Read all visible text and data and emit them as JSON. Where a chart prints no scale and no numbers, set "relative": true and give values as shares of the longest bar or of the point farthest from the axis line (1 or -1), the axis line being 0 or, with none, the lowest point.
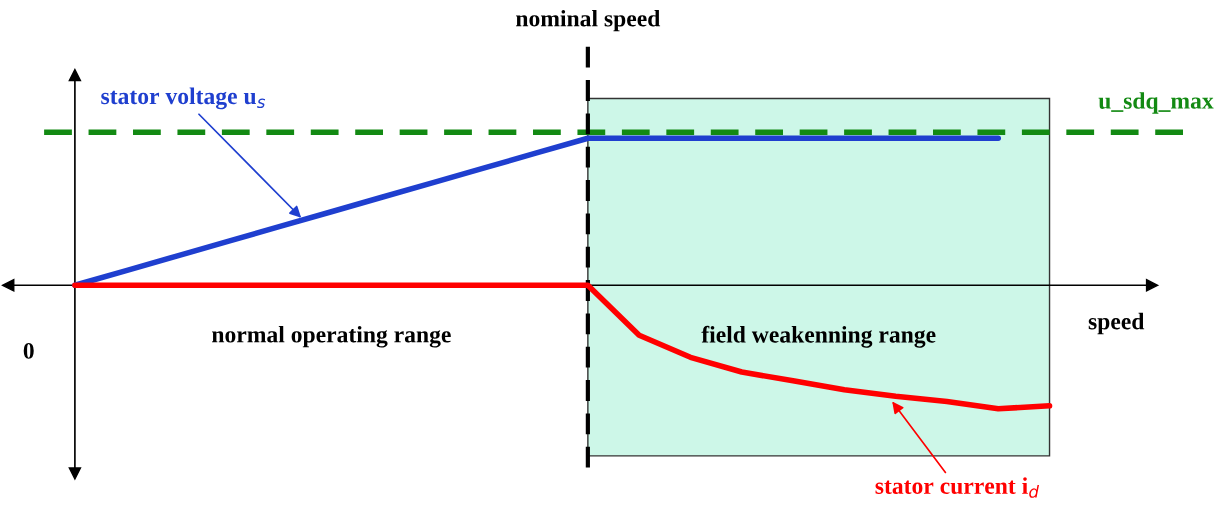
{
  "chart_data": {
    "type": "line",
    "relative": true,
    "xlabel": "speed",
    "legend": false,
    "categories": [
      null,
      null,
      null,
      null,
      null,
      null,
      null,
      null,
      null,
      null,
      null,
      null,
      null,
      null,
      null,
      null,
      null,
      null,
      null,
      null
    ],
    "series": [
      {
        "name": "stator voltage u$_{s}$",
        "color": "#1f3fcf",
        "values": [
          0,
          0.1,
          0.2,
          0.3,
          0.4,
          0.5,
          0.6,
          0.7,
          0.8,
          0.9,
          1,
          1,
          1,
          1,
          1,
          1,
          1,
          1,
          1,
          null
        ]
      },
      {
        "name": "stator current i$_{d}$",
        "color": "#ff0000",
        "values": [
          0,
          0,
          0,
          0,
          0,
          0,
          0,
          0,
          0,
          0,
          0,
          -0.34,
          -0.49,
          -0.59,
          -0.65,
          -0.71,
          -0.755,
          -0.79,
          -0.84,
          -0.82
        ]
      }
    ],
    "ref_lines": [
      {
        "axis": "x",
        "label": "nominal speed",
        "color": "#000000",
        "line_style": "dashed"
      },
      {
        "axis": "y",
        "value": 1.04,
        "label": "u_sdq_max",
        "color": "#138a13",
        "line_style": "dashed"
      }
    ],
    "annotations": [
      "0",
      "normal operating range",
      "field weakenning range"
    ]
  }
}
